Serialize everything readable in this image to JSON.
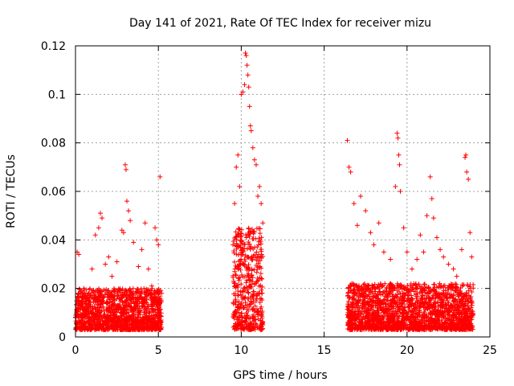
{
  "chart_data": {
    "type": "scatter",
    "title": "Day 141 of 2021, Rate Of TEC Index for receiver mizu",
    "xlabel": "GPS time / hours",
    "ylabel": "ROTI / TECUs",
    "xlim": [
      0,
      25
    ],
    "ylim": [
      0,
      0.12
    ],
    "xticks": [
      0,
      5,
      10,
      15,
      20,
      25
    ],
    "xtick_labels": [
      "0",
      "5",
      "10",
      "15",
      "20",
      "25"
    ],
    "yticks": [
      0,
      0.02,
      0.04,
      0.06,
      0.08,
      0.1,
      0.12
    ],
    "ytick_labels": [
      "0",
      "0.02",
      "0.04",
      "0.06",
      "0.08",
      "0.1",
      "0.12"
    ],
    "grid": true,
    "marker": "+",
    "color": "#ff0000",
    "series": [
      {
        "name": "ROTI",
        "points": [
          [
            0.1,
            0.035
          ],
          [
            0.2,
            0.034
          ],
          [
            0.3,
            0.012
          ],
          [
            0.5,
            0.02
          ],
          [
            0.8,
            0.018
          ],
          [
            1.0,
            0.028
          ],
          [
            1.2,
            0.042
          ],
          [
            1.4,
            0.045
          ],
          [
            1.5,
            0.051
          ],
          [
            1.6,
            0.049
          ],
          [
            1.8,
            0.03
          ],
          [
            2.0,
            0.033
          ],
          [
            2.2,
            0.025
          ],
          [
            2.5,
            0.031
          ],
          [
            2.8,
            0.044
          ],
          [
            2.9,
            0.043
          ],
          [
            3.0,
            0.071
          ],
          [
            3.05,
            0.069
          ],
          [
            3.1,
            0.056
          ],
          [
            3.2,
            0.052
          ],
          [
            3.3,
            0.048
          ],
          [
            3.5,
            0.039
          ],
          [
            3.8,
            0.029
          ],
          [
            4.0,
            0.036
          ],
          [
            4.2,
            0.047
          ],
          [
            4.4,
            0.028
          ],
          [
            4.6,
            0.021
          ],
          [
            4.8,
            0.045
          ],
          [
            4.9,
            0.04
          ],
          [
            5.0,
            0.038
          ],
          [
            5.1,
            0.066
          ],
          [
            5.2,
            0.018
          ],
          [
            9.5,
            0.038
          ],
          [
            9.6,
            0.055
          ],
          [
            9.7,
            0.07
          ],
          [
            9.8,
            0.075
          ],
          [
            9.9,
            0.062
          ],
          [
            10.0,
            0.1
          ],
          [
            10.1,
            0.101
          ],
          [
            10.2,
            0.104
          ],
          [
            10.25,
            0.117
          ],
          [
            10.3,
            0.116
          ],
          [
            10.35,
            0.112
          ],
          [
            10.4,
            0.108
          ],
          [
            10.45,
            0.103
          ],
          [
            10.5,
            0.095
          ],
          [
            10.55,
            0.087
          ],
          [
            10.6,
            0.085
          ],
          [
            10.7,
            0.078
          ],
          [
            10.8,
            0.073
          ],
          [
            10.9,
            0.071
          ],
          [
            11.0,
            0.058
          ],
          [
            11.1,
            0.062
          ],
          [
            11.2,
            0.055
          ],
          [
            11.3,
            0.047
          ],
          [
            16.4,
            0.081
          ],
          [
            16.5,
            0.07
          ],
          [
            16.6,
            0.068
          ],
          [
            16.8,
            0.055
          ],
          [
            17.0,
            0.046
          ],
          [
            17.2,
            0.058
          ],
          [
            17.5,
            0.052
          ],
          [
            17.8,
            0.043
          ],
          [
            18.0,
            0.038
          ],
          [
            18.3,
            0.047
          ],
          [
            18.6,
            0.035
          ],
          [
            19.0,
            0.032
          ],
          [
            19.3,
            0.062
          ],
          [
            19.4,
            0.084
          ],
          [
            19.45,
            0.082
          ],
          [
            19.5,
            0.075
          ],
          [
            19.55,
            0.071
          ],
          [
            19.6,
            0.06
          ],
          [
            19.8,
            0.045
          ],
          [
            20.0,
            0.035
          ],
          [
            20.3,
            0.028
          ],
          [
            20.6,
            0.032
          ],
          [
            20.8,
            0.042
          ],
          [
            21.0,
            0.035
          ],
          [
            21.2,
            0.05
          ],
          [
            21.4,
            0.066
          ],
          [
            21.5,
            0.057
          ],
          [
            21.6,
            0.049
          ],
          [
            21.8,
            0.041
          ],
          [
            22.0,
            0.036
          ],
          [
            22.2,
            0.033
          ],
          [
            22.5,
            0.03
          ],
          [
            22.8,
            0.028
          ],
          [
            23.0,
            0.025
          ],
          [
            23.3,
            0.036
          ],
          [
            23.5,
            0.074
          ],
          [
            23.55,
            0.075
          ],
          [
            23.6,
            0.068
          ],
          [
            23.7,
            0.065
          ],
          [
            23.8,
            0.043
          ],
          [
            23.9,
            0.033
          ]
        ],
        "dense_bands": [
          {
            "x_range": [
              0.0,
              5.2
            ],
            "y_range": [
              0.003,
              0.02
            ]
          },
          {
            "x_range": [
              9.5,
              11.3
            ],
            "y_range": [
              0.003,
              0.045
            ]
          },
          {
            "x_range": [
              16.4,
              24.0
            ],
            "y_range": [
              0.003,
              0.022
            ]
          }
        ]
      }
    ]
  }
}
